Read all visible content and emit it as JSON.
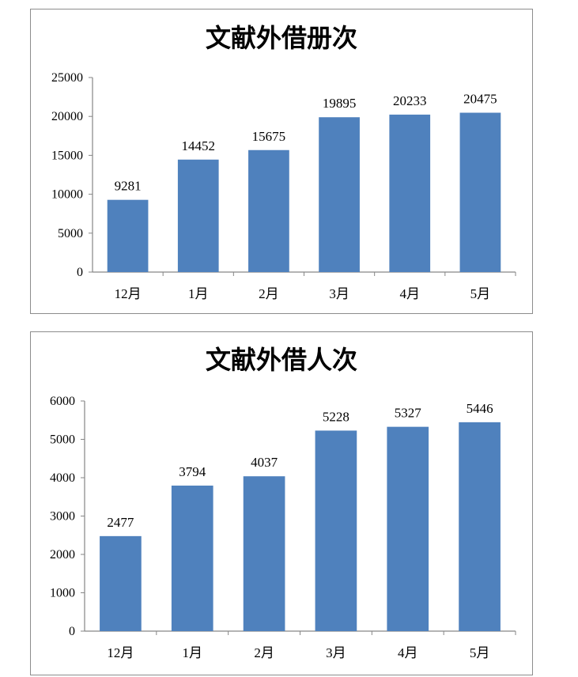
{
  "chart_data": [
    {
      "type": "bar",
      "title": "文献外借册次",
      "xlabel": "",
      "ylabel": "",
      "categories": [
        "12月",
        "1月",
        "2月",
        "3月",
        "4月",
        "5月"
      ],
      "values": [
        9281,
        14452,
        15675,
        19895,
        20233,
        20475
      ],
      "ylim": [
        0,
        25000
      ],
      "yticks": [
        0,
        5000,
        10000,
        15000,
        20000,
        25000
      ],
      "bar_color": "#4f81bd",
      "grid": false,
      "legend": "none"
    },
    {
      "type": "bar",
      "title": "文献外借人次",
      "xlabel": "",
      "ylabel": "",
      "categories": [
        "12月",
        "1月",
        "2月",
        "3月",
        "4月",
        "5月"
      ],
      "values": [
        2477,
        3794,
        4037,
        5228,
        5327,
        5446
      ],
      "ylim": [
        0,
        6000
      ],
      "yticks": [
        0,
        1000,
        2000,
        3000,
        4000,
        5000,
        6000
      ],
      "bar_color": "#4f81bd",
      "grid": false,
      "legend": "none"
    }
  ]
}
